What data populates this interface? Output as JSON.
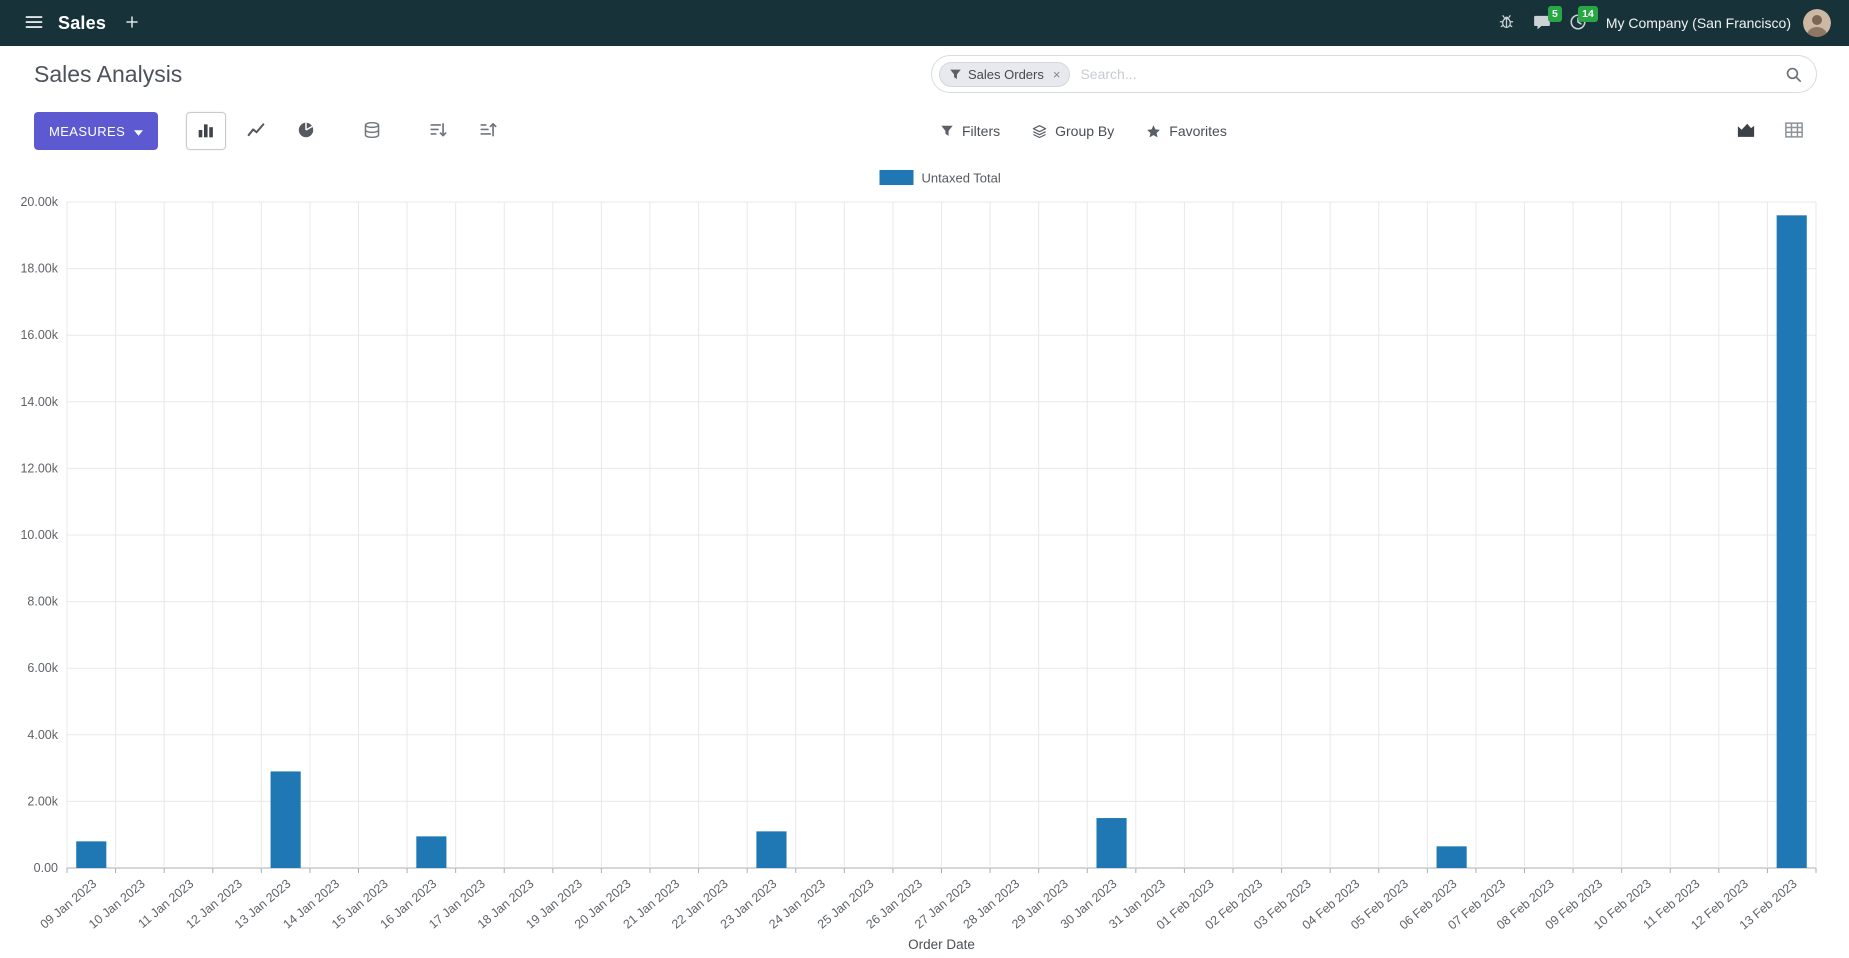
{
  "colors": {
    "navbar_bg": "#173339",
    "accent": "#5D5AD1",
    "badge": "#28a745"
  },
  "navbar": {
    "app_name": "Sales",
    "messages_badge": "5",
    "activities_badge": "14",
    "company": "My Company (San Francisco)"
  },
  "control_panel": {
    "title": "Sales Analysis",
    "search": {
      "facet_label": "Sales Orders",
      "facet_remove": "×",
      "placeholder": "Search..."
    }
  },
  "toolbar": {
    "measures_label": "MEASURES",
    "filters_label": "Filters",
    "group_by_label": "Group By",
    "favorites_label": "Favorites"
  },
  "icons": [
    "menu-icon",
    "plus-icon",
    "bug-icon",
    "chat-icon",
    "clock-icon",
    "avatar",
    "funnel-icon",
    "close-icon",
    "search-icon",
    "caret-down-icon",
    "bar-chart-icon",
    "line-chart-icon",
    "pie-chart-icon",
    "stacked-icon",
    "sort-desc-icon",
    "sort-asc-icon",
    "group-by-layers-icon",
    "star-icon",
    "area-chart-view-icon",
    "pivot-view-icon"
  ],
  "chart_data": {
    "type": "bar",
    "title": "",
    "xlabel": "Order Date",
    "ylabel": "",
    "legend": [
      "Untaxed Total"
    ],
    "legend_position": "top-center",
    "grid": true,
    "series_color": "#1f77b4",
    "ylim": [
      0,
      20000
    ],
    "ytick_step": 2000,
    "ytick_labels": [
      "0.00",
      "2.00k",
      "4.00k",
      "6.00k",
      "8.00k",
      "10.00k",
      "12.00k",
      "14.00k",
      "16.00k",
      "18.00k",
      "20.00k"
    ],
    "categories": [
      "09 Jan 2023",
      "10 Jan 2023",
      "11 Jan 2023",
      "12 Jan 2023",
      "13 Jan 2023",
      "14 Jan 2023",
      "15 Jan 2023",
      "16 Jan 2023",
      "17 Jan 2023",
      "18 Jan 2023",
      "19 Jan 2023",
      "20 Jan 2023",
      "21 Jan 2023",
      "22 Jan 2023",
      "23 Jan 2023",
      "24 Jan 2023",
      "25 Jan 2023",
      "26 Jan 2023",
      "27 Jan 2023",
      "28 Jan 2023",
      "29 Jan 2023",
      "30 Jan 2023",
      "31 Jan 2023",
      "01 Feb 2023",
      "02 Feb 2023",
      "03 Feb 2023",
      "04 Feb 2023",
      "05 Feb 2023",
      "06 Feb 2023",
      "07 Feb 2023",
      "08 Feb 2023",
      "09 Feb 2023",
      "10 Feb 2023",
      "11 Feb 2023",
      "12 Feb 2023",
      "13 Feb 2023"
    ],
    "values": [
      800,
      0,
      0,
      0,
      2900,
      0,
      0,
      950,
      0,
      0,
      0,
      0,
      0,
      0,
      1100,
      0,
      0,
      0,
      0,
      0,
      0,
      1500,
      0,
      0,
      0,
      0,
      0,
      0,
      650,
      0,
      0,
      0,
      0,
      0,
      0,
      19600
    ]
  }
}
